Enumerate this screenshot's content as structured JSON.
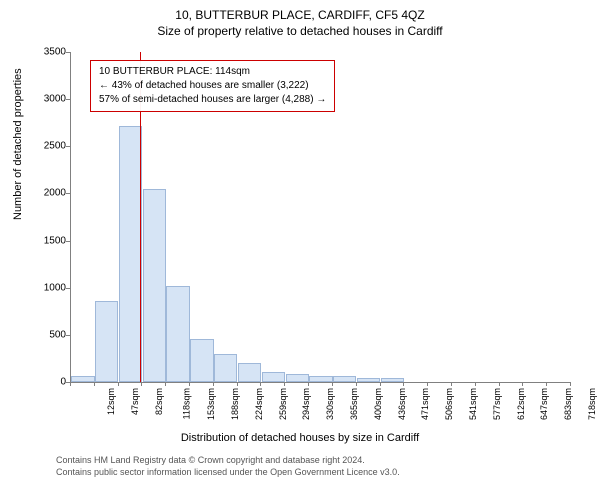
{
  "title_main": "10, BUTTERBUR PLACE, CARDIFF, CF5 4QZ",
  "title_sub": "Size of property relative to detached houses in Cardiff",
  "xlabel": "Distribution of detached houses by size in Cardiff",
  "ylabel": "Number of detached properties",
  "info_box": {
    "line1": "10 BUTTERBUR PLACE: 114sqm",
    "line2": "← 43% of detached houses are smaller (3,222)",
    "line3": "57% of semi-detached houses are larger (4,288) →",
    "border_color": "#cc0000"
  },
  "footer": {
    "line1": "Contains HM Land Registry data © Crown copyright and database right 2024.",
    "line2": "Contains public sector information licensed under the Open Government Licence v3.0."
  },
  "chart": {
    "type": "histogram",
    "background_color": "#ffffff",
    "axis_color": "#808080",
    "bar_fill": "#d6e4f5",
    "bar_stroke": "#9fb8d9",
    "marker_color": "#cc0000",
    "marker_x_value": 114,
    "ylim": [
      0,
      3500
    ],
    "ytick_step": 500,
    "x_start": 12,
    "x_step": 35.3,
    "x_categories": [
      "12sqm",
      "47sqm",
      "82sqm",
      "118sqm",
      "153sqm",
      "188sqm",
      "224sqm",
      "259sqm",
      "294sqm",
      "330sqm",
      "365sqm",
      "400sqm",
      "436sqm",
      "471sqm",
      "506sqm",
      "541sqm",
      "577sqm",
      "612sqm",
      "647sqm",
      "683sqm",
      "718sqm"
    ],
    "values": [
      60,
      860,
      2720,
      2050,
      1020,
      460,
      300,
      200,
      110,
      90,
      60,
      60,
      40,
      40,
      0,
      0,
      0,
      0,
      0,
      0,
      0
    ],
    "bar_width_ratio": 0.98,
    "label_fontsize": 11,
    "tick_fontsize": 10,
    "title_fontsize": 12
  }
}
